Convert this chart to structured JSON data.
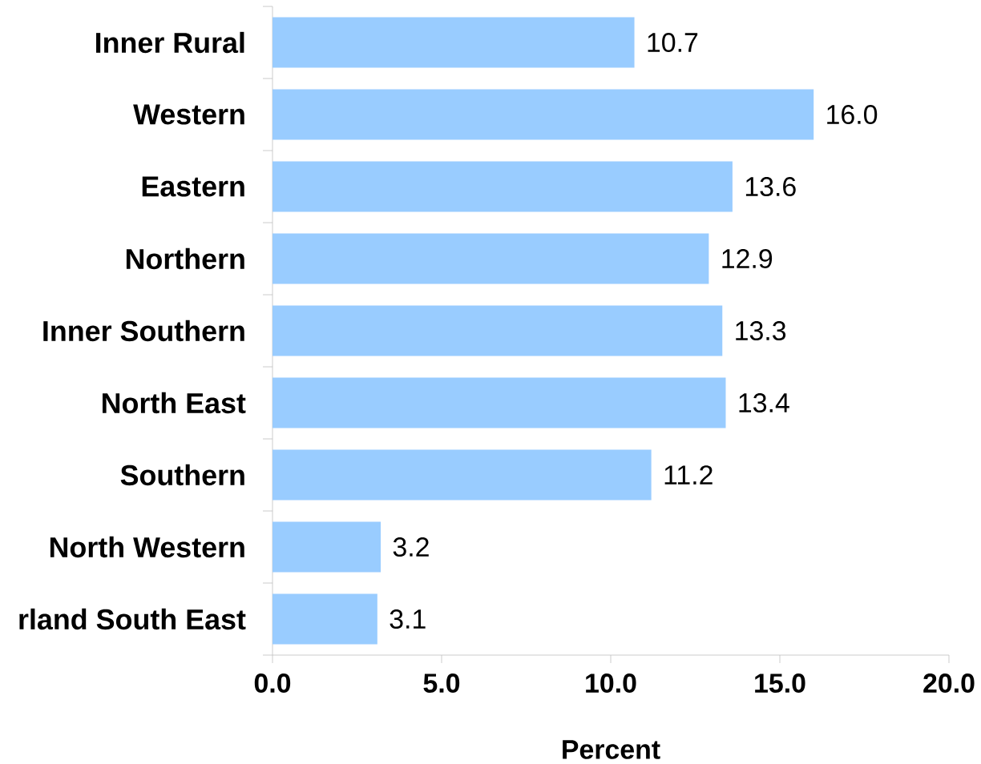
{
  "chart_data": {
    "type": "bar",
    "orientation": "horizontal",
    "categories": [
      "Inner Rural",
      "Western",
      "Eastern",
      "Northern",
      "Inner Southern",
      "North East",
      "Southern",
      "North Western",
      "rland South East"
    ],
    "values": [
      10.7,
      16.0,
      13.6,
      12.9,
      13.3,
      13.4,
      11.2,
      3.2,
      3.1
    ],
    "value_labels": [
      "10.7",
      "16.0",
      "13.6",
      "12.9",
      "13.3",
      "13.4",
      "11.2",
      "3.2",
      "3.1"
    ],
    "color": "#99ccff",
    "xlabel": "Percent",
    "xlim": [
      0,
      20
    ],
    "xticks": [
      {
        "value": 0,
        "label": "0.0"
      },
      {
        "value": 5,
        "label": "5.0"
      },
      {
        "value": 10,
        "label": "10.0"
      },
      {
        "value": 15,
        "label": "15.0"
      },
      {
        "value": 20,
        "label": "20.0"
      }
    ]
  }
}
